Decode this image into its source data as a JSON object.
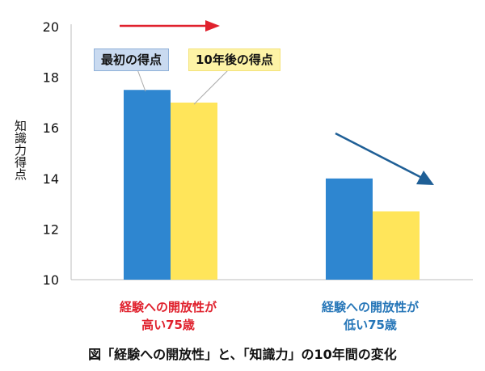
{
  "chart_data": {
    "type": "bar",
    "ylabel": "知識力得点",
    "ylim": [
      10,
      20
    ],
    "yticks": [
      10,
      12,
      14,
      16,
      18,
      20
    ],
    "categories": [
      "経験への開放性が\n高い75歳",
      "経験への開放性が\n低い75歳"
    ],
    "category_colors": [
      "#e0212d",
      "#2676b8"
    ],
    "series": [
      {
        "name": "最初の得点",
        "values": [
          17.5,
          14.0
        ],
        "color": "#2e86d0"
      },
      {
        "name": "10年後の得点",
        "values": [
          17.0,
          12.7
        ],
        "color": "#ffe55a"
      }
    ],
    "annotations": [
      {
        "type": "arrow",
        "direction": "right",
        "color": "#e0212d"
      },
      {
        "type": "arrow",
        "direction": "down-right",
        "color": "#1f5f96"
      }
    ],
    "grid": false,
    "legend_placement": "top-left"
  },
  "caption": "図「経験への開放性」と、「知識力」の10年間の変化"
}
